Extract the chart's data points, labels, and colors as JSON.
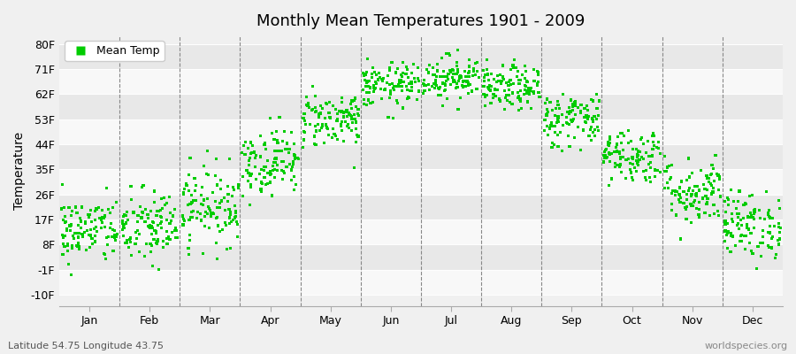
{
  "title": "Monthly Mean Temperatures 1901 - 2009",
  "ylabel": "Temperature",
  "xlabel_bottom": "Latitude 54.75 Longitude 43.75",
  "watermark": "worldspecies.org",
  "legend_label": "Mean Temp",
  "dot_color": "#00cc00",
  "background_color": "#f0f0f0",
  "band_light": "#f8f8f8",
  "band_dark": "#e8e8e8",
  "yticks": [
    -10,
    -1,
    8,
    17,
    26,
    35,
    44,
    53,
    62,
    71,
    80
  ],
  "ylim": [
    -14,
    83
  ],
  "months": [
    "Jan",
    "Feb",
    "Mar",
    "Apr",
    "May",
    "Jun",
    "Jul",
    "Aug",
    "Sep",
    "Oct",
    "Nov",
    "Dec"
  ],
  "month_mean_temps_F": [
    13,
    14,
    22,
    38,
    53,
    65,
    68,
    64,
    53,
    40,
    27,
    15
  ],
  "month_std_F": [
    6,
    7,
    7,
    6,
    5,
    4,
    4,
    4,
    5,
    5,
    6,
    6
  ],
  "n_years": 109
}
